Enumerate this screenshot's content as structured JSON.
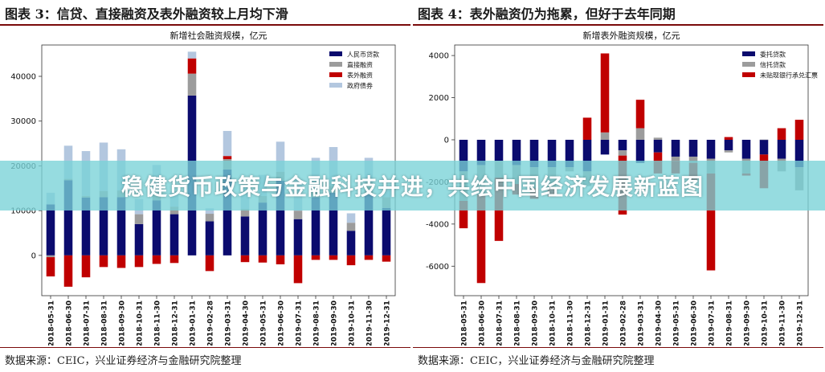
{
  "left": {
    "figure_title": "图表 3：信贷、直接融资及表外融资较上月均下滑",
    "source": "数据来源：CEIC，兴业证券经济与金融研究院整理"
  },
  "right": {
    "figure_title": "图表 4：表外融资仍为拖累，但好于去年同期",
    "source": "数据来源：CEIC，兴业证券经济与金融研究院整理"
  },
  "banner": {
    "text": "稳健货币政策与金融科技并进，共绘中国经济发展新蓝图"
  },
  "colors": {
    "navy": "#0b0b6e",
    "grey": "#9c9c9c",
    "red": "#c00000",
    "lightblue": "#b3c7df",
    "title_rule": "#7a0a0a"
  },
  "chart_data": [
    {
      "type": "bar",
      "stacked": true,
      "title": "新增社会融资规模，亿元",
      "xlabel": "",
      "ylabel": "",
      "ylim": [
        -9000,
        47000
      ],
      "yticks": [
        0,
        10000,
        20000,
        30000,
        40000
      ],
      "grid": false,
      "legend_position": "top-right",
      "categories": [
        "2018-05-31",
        "2018-06-30",
        "2018-07-31",
        "2018-08-31",
        "2018-09-30",
        "2018-10-31",
        "2018-11-30",
        "2018-12-31",
        "2019-01-31",
        "2019-02-28",
        "2019-03-31",
        "2019-04-30",
        "2019-05-31",
        "2019-06-30",
        "2019-07-31",
        "2019-08-31",
        "2019-09-30",
        "2019-10-31",
        "2019-11-30",
        "2019-12-31"
      ],
      "series": [
        {
          "name": "人民币贷款",
          "color": "#0b0b6e",
          "values": [
            11400,
            16800,
            12900,
            13000,
            13000,
            7000,
            12300,
            9200,
            35700,
            7600,
            19200,
            8700,
            11800,
            16700,
            8100,
            13000,
            14000,
            5500,
            13600,
            10600
          ]
        },
        {
          "name": "直接融资",
          "color": "#9c9c9c",
          "values": [
            -400,
            300,
            400,
            1400,
            1500,
            2200,
            1800,
            1700,
            4900,
            1700,
            2300,
            1700,
            1500,
            2000,
            1900,
            1500,
            1500,
            1800,
            2700,
            2400
          ]
        },
        {
          "name": "表外融资",
          "color": "#c00000",
          "values": [
            -4300,
            -7000,
            -4900,
            -2600,
            -2800,
            -2600,
            -1900,
            -1700,
            3400,
            -3500,
            700,
            -1500,
            -1600,
            -2000,
            -6200,
            -1000,
            -1000,
            -2200,
            -1000,
            -1400
          ]
        },
        {
          "name": "政府债券",
          "color": "#b3c7df",
          "values": [
            2600,
            7400,
            10000,
            10800,
            9200,
            3400,
            6100,
            3400,
            1500,
            1200,
            5600,
            5800,
            4700,
            6700,
            7000,
            7300,
            8700,
            2100,
            5500,
            1600
          ]
        }
      ]
    },
    {
      "type": "bar",
      "stacked": true,
      "title": "新增表外融资规模，亿元",
      "xlabel": "",
      "ylabel": "",
      "ylim": [
        -7400,
        4500
      ],
      "yticks": [
        -6000,
        -4000,
        -2000,
        0,
        2000,
        4000
      ],
      "grid": false,
      "legend_position": "top-right",
      "categories": [
        "2018-05-31",
        "2018-06-30",
        "2018-07-31",
        "2018-08-31",
        "2018-09-30",
        "2018-10-31",
        "2018-11-30",
        "2018-12-31",
        "2019-01-31",
        "2019-02-28",
        "2019-03-31",
        "2019-04-30",
        "2019-05-31",
        "2019-06-30",
        "2019-07-31",
        "2019-08-31",
        "2019-09-30",
        "2019-10-31",
        "2019-11-30",
        "2019-12-31"
      ],
      "series": [
        {
          "name": "委托贷款",
          "color": "#0b0b6e",
          "values": [
            -1500,
            -1200,
            -1000,
            -1200,
            -1300,
            -1300,
            -1300,
            -1500,
            -700,
            -500,
            -1100,
            -600,
            -800,
            -800,
            -900,
            -500,
            -900,
            -700,
            -900,
            -1300
          ]
        },
        {
          "name": "信托贷款",
          "color": "#9c9c9c",
          "values": [
            -1400,
            -1400,
            -800,
            -900,
            -1000,
            -1000,
            -200,
            -700,
            350,
            -250,
            550,
            100,
            -200,
            -300,
            -700,
            -100,
            -700,
            10,
            -600,
            -1100
          ]
        },
        {
          "name": "未贴现银行承兑汇票",
          "color": "#c00000",
          "values": [
            -1300,
            -4200,
            -3000,
            -500,
            -500,
            -400,
            0,
            1050,
            3750,
            -2800,
            1350,
            -1000,
            -600,
            -900,
            -4600,
            130,
            -100,
            -1600,
            550,
            950
          ]
        }
      ]
    }
  ]
}
